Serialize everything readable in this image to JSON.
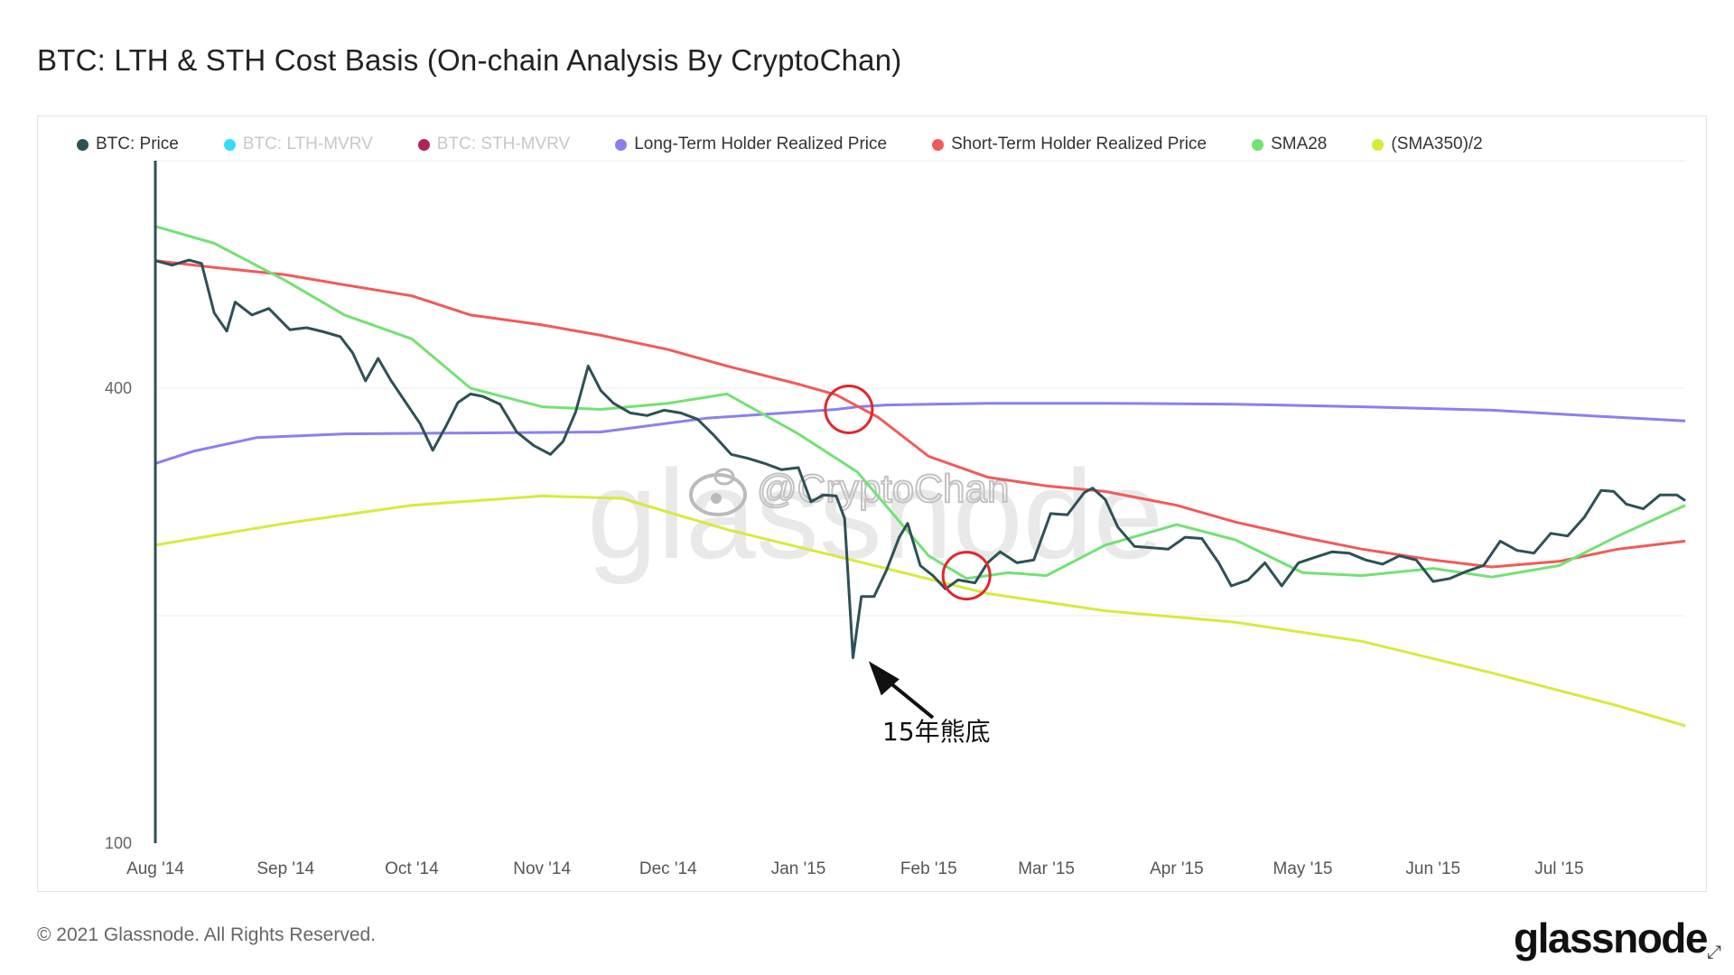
{
  "header": {
    "title": "BTC: LTH & STH Cost Basis (On-chain Analysis By CryptoChan)"
  },
  "legend": [
    {
      "label": "BTC: Price",
      "color": "#2d5156",
      "faded": false
    },
    {
      "label": "BTC: LTH-MVRV",
      "color": "#33ddf5",
      "faded": true
    },
    {
      "label": "BTC: STH-MVRV",
      "color": "#b0245c",
      "faded": true
    },
    {
      "label": "Long-Term Holder Realized Price",
      "color": "#8a80f0",
      "faded": false
    },
    {
      "label": "Short-Term Holder Realized Price",
      "color": "#f25a5a",
      "faded": false
    },
    {
      "label": "SMA28",
      "color": "#72e272",
      "faded": false
    },
    {
      "label": "(SMA350)/2",
      "color": "#d8ea3c",
      "faded": false
    }
  ],
  "watermark": {
    "text": "@CryptoChan",
    "icon": "weibo-icon"
  },
  "annotation": {
    "text": "15年熊底",
    "icon": "arrow-icon"
  },
  "footer": {
    "copyright": "© 2021 Glassnode. All Rights Reserved.",
    "brand": "glassnode"
  },
  "chart_data": {
    "type": "line",
    "y_scale": "log",
    "ylim": [
      100,
      800
    ],
    "y_ticks": [
      {
        "value": 100,
        "label": "100"
      },
      {
        "value": 400,
        "label": "400"
      }
    ],
    "x_range": [
      "2014-08-01",
      "2015-07-31"
    ],
    "x_ticks": [
      {
        "date": "2014-08-01",
        "label": "Aug '14"
      },
      {
        "date": "2014-09-01",
        "label": "Sep '14"
      },
      {
        "date": "2014-10-01",
        "label": "Oct '14"
      },
      {
        "date": "2014-11-01",
        "label": "Nov '14"
      },
      {
        "date": "2014-12-01",
        "label": "Dec '14"
      },
      {
        "date": "2015-01-01",
        "label": "Jan '15"
      },
      {
        "date": "2015-02-01",
        "label": "Feb '15"
      },
      {
        "date": "2015-03-01",
        "label": "Mar '15"
      },
      {
        "date": "2015-04-01",
        "label": "Apr '15"
      },
      {
        "date": "2015-05-01",
        "label": "May '15"
      },
      {
        "date": "2015-06-01",
        "label": "Jun '15"
      },
      {
        "date": "2015-07-01",
        "label": "Jul '15"
      }
    ],
    "grid": true,
    "legend_position": "top",
    "series": [
      {
        "name": "(SMA350)/2",
        "color": "#d8ea3c",
        "points": [
          [
            "2014-08-01",
            248
          ],
          [
            "2014-09-01",
            265
          ],
          [
            "2014-10-01",
            280
          ],
          [
            "2014-11-01",
            288
          ],
          [
            "2014-11-20",
            286
          ],
          [
            "2014-12-15",
            260
          ],
          [
            "2015-01-15",
            236
          ],
          [
            "2015-02-15",
            214
          ],
          [
            "2015-03-15",
            203
          ],
          [
            "2015-04-15",
            196
          ],
          [
            "2015-05-15",
            185
          ],
          [
            "2015-06-15",
            168
          ],
          [
            "2015-07-15",
            152
          ],
          [
            "2015-07-31",
            143
          ]
        ]
      },
      {
        "name": "Long-Term Holder Realized Price",
        "color": "#8a80f0",
        "points": [
          [
            "2014-08-01",
            318
          ],
          [
            "2014-08-10",
            330
          ],
          [
            "2014-08-25",
            344
          ],
          [
            "2014-09-15",
            348
          ],
          [
            "2014-10-15",
            349
          ],
          [
            "2014-11-15",
            350
          ],
          [
            "2014-12-10",
            365
          ],
          [
            "2015-01-01",
            372
          ],
          [
            "2015-01-10",
            375
          ],
          [
            "2015-01-15",
            378
          ],
          [
            "2015-01-22",
            380
          ],
          [
            "2015-02-15",
            382
          ],
          [
            "2015-03-15",
            382
          ],
          [
            "2015-04-15",
            381
          ],
          [
            "2015-05-15",
            378
          ],
          [
            "2015-06-15",
            374
          ],
          [
            "2015-07-15",
            366
          ],
          [
            "2015-07-31",
            362
          ]
        ]
      },
      {
        "name": "Short-Term Holder Realized Price",
        "color": "#f25a5a",
        "points": [
          [
            "2014-08-01",
            590
          ],
          [
            "2014-08-15",
            578
          ],
          [
            "2014-09-01",
            565
          ],
          [
            "2014-09-15",
            548
          ],
          [
            "2014-10-01",
            530
          ],
          [
            "2014-10-15",
            500
          ],
          [
            "2014-11-01",
            485
          ],
          [
            "2014-11-15",
            470
          ],
          [
            "2014-12-01",
            450
          ],
          [
            "2014-12-15",
            428
          ],
          [
            "2015-01-01",
            405
          ],
          [
            "2015-01-10",
            392
          ],
          [
            "2015-01-20",
            366
          ],
          [
            "2015-02-01",
            325
          ],
          [
            "2015-02-15",
            305
          ],
          [
            "2015-03-01",
            297
          ],
          [
            "2015-03-15",
            292
          ],
          [
            "2015-04-01",
            280
          ],
          [
            "2015-04-15",
            266
          ],
          [
            "2015-05-01",
            254
          ],
          [
            "2015-05-15",
            245
          ],
          [
            "2015-06-01",
            237
          ],
          [
            "2015-06-15",
            232
          ],
          [
            "2015-07-01",
            236
          ],
          [
            "2015-07-15",
            245
          ],
          [
            "2015-07-31",
            251
          ]
        ]
      },
      {
        "name": "SMA28",
        "color": "#72e272",
        "points": [
          [
            "2014-08-01",
            655
          ],
          [
            "2014-08-15",
            622
          ],
          [
            "2014-09-01",
            555
          ],
          [
            "2014-09-15",
            500
          ],
          [
            "2014-10-01",
            465
          ],
          [
            "2014-10-15",
            400
          ],
          [
            "2014-11-01",
            378
          ],
          [
            "2014-11-15",
            375
          ],
          [
            "2014-12-01",
            382
          ],
          [
            "2014-12-15",
            393
          ],
          [
            "2015-01-01",
            348
          ],
          [
            "2015-01-15",
            310
          ],
          [
            "2015-02-01",
            240
          ],
          [
            "2015-02-10",
            224
          ],
          [
            "2015-02-20",
            228
          ],
          [
            "2015-03-01",
            226
          ],
          [
            "2015-03-15",
            248
          ],
          [
            "2015-04-01",
            264
          ],
          [
            "2015-04-15",
            252
          ],
          [
            "2015-05-01",
            228
          ],
          [
            "2015-05-15",
            226
          ],
          [
            "2015-06-01",
            231
          ],
          [
            "2015-06-15",
            225
          ],
          [
            "2015-07-01",
            233
          ],
          [
            "2015-07-15",
            255
          ],
          [
            "2015-07-31",
            280
          ]
        ]
      },
      {
        "name": "BTC: Price",
        "color": "#2d5156",
        "points": [
          [
            "2014-08-01",
            590
          ],
          [
            "2014-08-05",
            582
          ],
          [
            "2014-08-09",
            591
          ],
          [
            "2014-08-12",
            585
          ],
          [
            "2014-08-15",
            503
          ],
          [
            "2014-08-18",
            476
          ],
          [
            "2014-08-20",
            520
          ],
          [
            "2014-08-24",
            500
          ],
          [
            "2014-08-28",
            510
          ],
          [
            "2014-09-02",
            478
          ],
          [
            "2014-09-06",
            481
          ],
          [
            "2014-09-10",
            475
          ],
          [
            "2014-09-14",
            468
          ],
          [
            "2014-09-17",
            445
          ],
          [
            "2014-09-20",
            409
          ],
          [
            "2014-09-23",
            438
          ],
          [
            "2014-09-26",
            410
          ],
          [
            "2014-09-30",
            380
          ],
          [
            "2014-10-03",
            359
          ],
          [
            "2014-10-06",
            331
          ],
          [
            "2014-10-09",
            355
          ],
          [
            "2014-10-12",
            383
          ],
          [
            "2014-10-15",
            393
          ],
          [
            "2014-10-18",
            390
          ],
          [
            "2014-10-22",
            381
          ],
          [
            "2014-10-26",
            350
          ],
          [
            "2014-10-30",
            336
          ],
          [
            "2014-11-03",
            327
          ],
          [
            "2014-11-06",
            340
          ],
          [
            "2014-11-09",
            372
          ],
          [
            "2014-11-12",
            428
          ],
          [
            "2014-11-15",
            397
          ],
          [
            "2014-11-18",
            382
          ],
          [
            "2014-11-22",
            371
          ],
          [
            "2014-11-26",
            368
          ],
          [
            "2014-11-30",
            374
          ],
          [
            "2014-12-04",
            371
          ],
          [
            "2014-12-08",
            364
          ],
          [
            "2014-12-12",
            346
          ],
          [
            "2014-12-16",
            327
          ],
          [
            "2014-12-20",
            323
          ],
          [
            "2014-12-24",
            318
          ],
          [
            "2014-12-28",
            312
          ],
          [
            "2015-01-01",
            314
          ],
          [
            "2015-01-04",
            283
          ],
          [
            "2015-01-07",
            289
          ],
          [
            "2015-01-10",
            288
          ],
          [
            "2015-01-12",
            269
          ],
          [
            "2015-01-14",
            176
          ],
          [
            "2015-01-16",
            212
          ],
          [
            "2015-01-19",
            212
          ],
          [
            "2015-01-22",
            230
          ],
          [
            "2015-01-25",
            254
          ],
          [
            "2015-01-27",
            265
          ],
          [
            "2015-01-30",
            233
          ],
          [
            "2015-02-02",
            226
          ],
          [
            "2015-02-05",
            217
          ],
          [
            "2015-02-08",
            223
          ],
          [
            "2015-02-12",
            221
          ],
          [
            "2015-02-15",
            235
          ],
          [
            "2015-02-18",
            243
          ],
          [
            "2015-02-22",
            235
          ],
          [
            "2015-02-26",
            237
          ],
          [
            "2015-03-02",
            273
          ],
          [
            "2015-03-06",
            272
          ],
          [
            "2015-03-10",
            291
          ],
          [
            "2015-03-12",
            295
          ],
          [
            "2015-03-15",
            285
          ],
          [
            "2015-03-18",
            262
          ],
          [
            "2015-03-22",
            247
          ],
          [
            "2015-03-26",
            246
          ],
          [
            "2015-03-30",
            245
          ],
          [
            "2015-04-03",
            254
          ],
          [
            "2015-04-07",
            253
          ],
          [
            "2015-04-11",
            235
          ],
          [
            "2015-04-14",
            219
          ],
          [
            "2015-04-18",
            223
          ],
          [
            "2015-04-22",
            235
          ],
          [
            "2015-04-26",
            219
          ],
          [
            "2015-04-30",
            235
          ],
          [
            "2015-05-04",
            239
          ],
          [
            "2015-05-08",
            243
          ],
          [
            "2015-05-12",
            242
          ],
          [
            "2015-05-16",
            237
          ],
          [
            "2015-05-20",
            234
          ],
          [
            "2015-05-24",
            240
          ],
          [
            "2015-05-28",
            237
          ],
          [
            "2015-06-01",
            222
          ],
          [
            "2015-06-05",
            224
          ],
          [
            "2015-06-09",
            229
          ],
          [
            "2015-06-13",
            233
          ],
          [
            "2015-06-17",
            251
          ],
          [
            "2015-06-21",
            244
          ],
          [
            "2015-06-25",
            242
          ],
          [
            "2015-06-29",
            257
          ],
          [
            "2015-07-03",
            255
          ],
          [
            "2015-07-07",
            270
          ],
          [
            "2015-07-11",
            293
          ],
          [
            "2015-07-14",
            292
          ],
          [
            "2015-07-17",
            281
          ],
          [
            "2015-07-21",
            277
          ],
          [
            "2015-07-25",
            289
          ],
          [
            "2015-07-29",
            289
          ],
          [
            "2015-07-31",
            284
          ]
        ]
      }
    ],
    "annotations": [
      {
        "type": "circle",
        "date": "2015-01-13",
        "value": 375,
        "color": "#e0282e"
      },
      {
        "type": "circle",
        "date": "2015-02-10",
        "value": 226,
        "color": "#e0282e"
      },
      {
        "type": "arrow",
        "date": "2015-01-16",
        "value": 178
      }
    ]
  }
}
